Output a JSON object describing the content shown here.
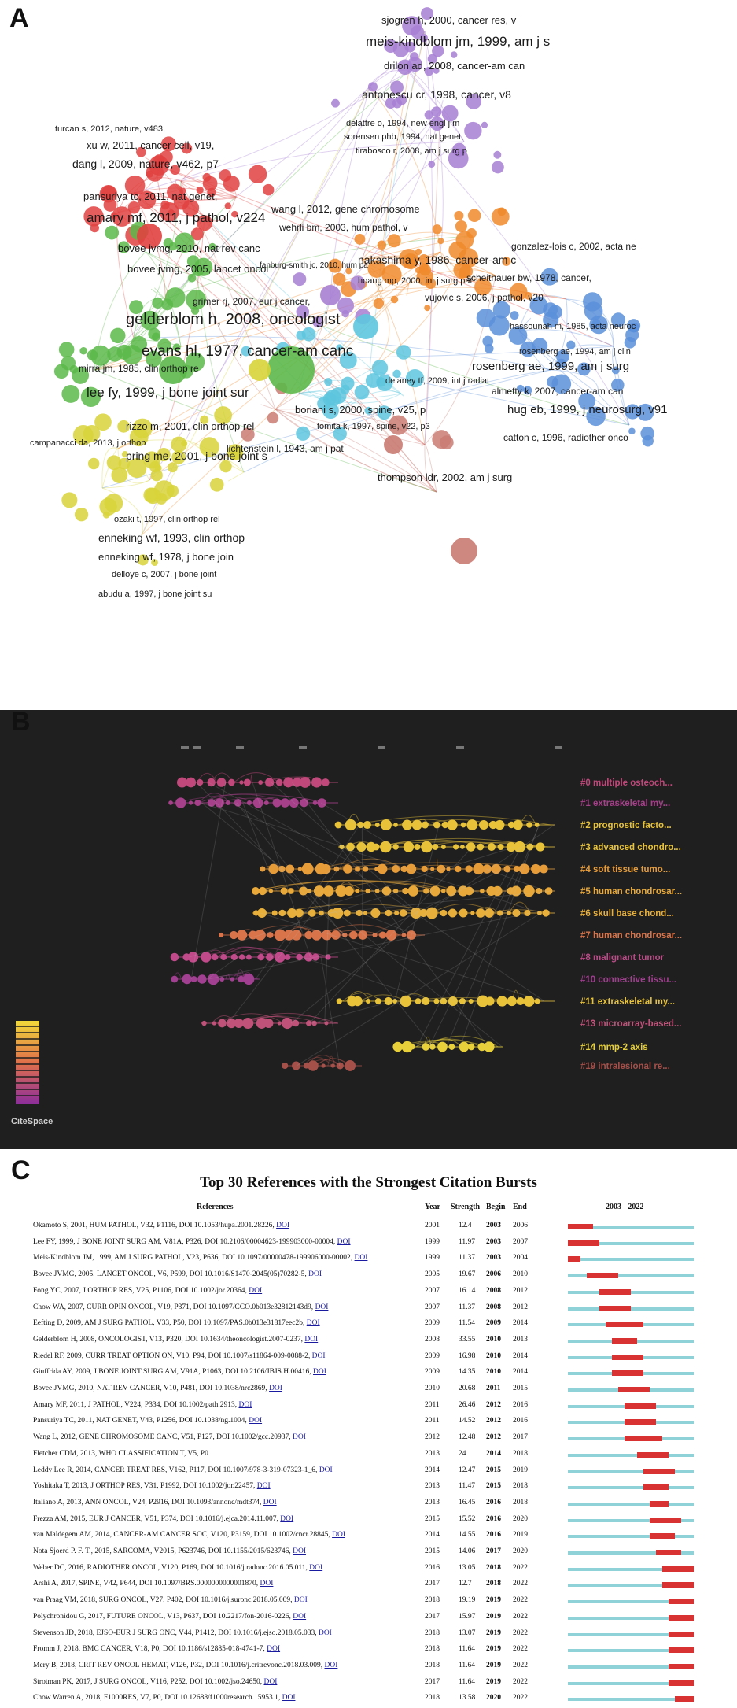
{
  "panel_a": {
    "letter": "A",
    "labels": [
      {
        "text": "sjogren h, 2000, cancer res, v",
        "cluster": "purple"
      },
      {
        "text": "meis-kindblom jm, 1999, am j s",
        "cluster": "purple"
      },
      {
        "text": "drilon ad, 2008, cancer-am can",
        "cluster": "purple"
      },
      {
        "text": "antonescu cr, 1998, cancer, v8",
        "cluster": "purple"
      },
      {
        "text": "delattre o, 1994, new engl j m",
        "cluster": "purple"
      },
      {
        "text": "sorensen phb, 1994, nat genet,",
        "cluster": "purple"
      },
      {
        "text": "tirabosco r, 2008, am j surg p",
        "cluster": "purple"
      },
      {
        "text": "turcan s, 2012, nature, v483,",
        "cluster": "red"
      },
      {
        "text": "xu w, 2011, cancer cell, v19,",
        "cluster": "red"
      },
      {
        "text": "dang l, 2009, nature, v462, p7",
        "cluster": "red"
      },
      {
        "text": "pansuriya tc, 2011, nat genet,",
        "cluster": "red"
      },
      {
        "text": "amary mf, 2011, j pathol, v224",
        "cluster": "red"
      },
      {
        "text": "wang l, 2012, gene chromosome",
        "cluster": "red"
      },
      {
        "text": "wehrli bm, 2003, hum pathol, v",
        "cluster": "red"
      },
      {
        "text": "fanburg-smith jc, 2010, hum pa",
        "cluster": "purple"
      },
      {
        "text": "bovee jvmg, 2010, nat rev canc",
        "cluster": "red"
      },
      {
        "text": "bovee jvmg, 2005, lancet oncol",
        "cluster": "green"
      },
      {
        "text": "hoang mp, 2000, int j surg pat",
        "cluster": "orange"
      },
      {
        "text": "gonzalez-lois c, 2002, acta ne",
        "cluster": "blue"
      },
      {
        "text": "nakashima y, 1986, cancer-am c",
        "cluster": "orange"
      },
      {
        "text": "scheithauer bw, 1978, cancer,",
        "cluster": "orange"
      },
      {
        "text": "vujovic s, 2006, j pathol, v20",
        "cluster": "orange"
      },
      {
        "text": "grimer rj, 2007, eur j cancer,",
        "cluster": "green"
      },
      {
        "text": "gelderblom h, 2008, oncologist",
        "cluster": "green"
      },
      {
        "text": "hassounah m, 1985, acta neuroc",
        "cluster": "blue"
      },
      {
        "text": "rosenberg ae, 1994, am j clin",
        "cluster": "blue"
      },
      {
        "text": "evans hl, 1977, cancer-am canc",
        "cluster": "green"
      },
      {
        "text": "rosenberg ae, 1999, am j surg",
        "cluster": "blue"
      },
      {
        "text": "mirra jm, 1985, clin orthop re",
        "cluster": "green"
      },
      {
        "text": "delaney tf, 2009, int j radiat",
        "cluster": "cyan"
      },
      {
        "text": "almefty k, 2007, cancer-am can",
        "cluster": "blue"
      },
      {
        "text": "lee fy, 1999, j bone joint sur",
        "cluster": "green"
      },
      {
        "text": "boriani s, 2000, spine, v25, p",
        "cluster": "cyan"
      },
      {
        "text": "hug eb, 1999, j neurosurg, v91",
        "cluster": "blue"
      },
      {
        "text": "tomita k, 1997, spine, v22, p3",
        "cluster": "cyan"
      },
      {
        "text": "rizzo m, 2001, clin orthop rel",
        "cluster": "yellow"
      },
      {
        "text": "catton c, 1996, radiother onco",
        "cluster": "blue"
      },
      {
        "text": "campanacci da, 2013, j orthop",
        "cluster": "yellow"
      },
      {
        "text": "lichtenstein l, 1943, am j pat",
        "cluster": "brown"
      },
      {
        "text": "pring me, 2001, j bone joint s",
        "cluster": "yellow"
      },
      {
        "text": "thompson ldr, 2002, am j surg",
        "cluster": "brown"
      },
      {
        "text": "ozaki t, 1997, clin orthop rel",
        "cluster": "yellow"
      },
      {
        "text": "enneking wf, 1993, clin orthop",
        "cluster": "yellow"
      },
      {
        "text": "enneking wf, 1978, j bone join",
        "cluster": "yellow"
      },
      {
        "text": "delloye c, 2007, j bone joint",
        "cluster": "yellow"
      },
      {
        "text": "abudu a, 1997, j bone joint su",
        "cluster": "yellow"
      }
    ],
    "cluster_colors": {
      "red": "#e0413f",
      "green": "#5cb84a",
      "blue": "#5b8fd9",
      "orange": "#f08a2c",
      "yellow": "#d8d43a",
      "purple": "#a77fd3",
      "cyan": "#5dc6de",
      "brown": "#c97b72"
    }
  },
  "panel_b": {
    "letter": "B",
    "logo": "CiteSpace",
    "clusters": [
      {
        "label": "#0 multiple osteoch...",
        "color": "#c0487a"
      },
      {
        "label": "#1 extraskeletal my...",
        "color": "#a6408a"
      },
      {
        "label": "#2 prognostic facto...",
        "color": "#e8c33a"
      },
      {
        "label": "#3 advanced chondro...",
        "color": "#e8c33a"
      },
      {
        "label": "#4 soft tissue tumo...",
        "color": "#e79c3a"
      },
      {
        "label": "#5 human chondrosar...",
        "color": "#e8a93a"
      },
      {
        "label": "#6 skull base chond...",
        "color": "#e8b03a"
      },
      {
        "label": "#7 human chondrosar...",
        "color": "#d9744a"
      },
      {
        "label": "#8 malignant tumor",
        "color": "#c04a8a"
      },
      {
        "label": "#10 connective tissu...",
        "color": "#a13f90"
      },
      {
        "label": "#11 extraskeletal my...",
        "color": "#e8c33a"
      },
      {
        "label": "#13 microarray-based...",
        "color": "#c0527a"
      },
      {
        "label": "#14 mmp-2 axis",
        "color": "#e8d03a"
      },
      {
        "label": "#19 intralesional re...",
        "color": "#a6504a"
      }
    ]
  },
  "panel_c": {
    "letter": "C",
    "title": "Top 30 References with the Strongest Citation Bursts",
    "headers": {
      "references": "References",
      "year": "Year",
      "strength": "Strength",
      "begin": "Begin",
      "end": "End",
      "span": "2003 - 2022"
    },
    "span_start": 2003,
    "span_end": 2022,
    "rows": [
      {
        "ref": "Okamoto S, 2001, HUM PATHOL, V32, P1116, DOI 10.1053/hupa.2001.28226,",
        "doi": "DOI",
        "year": "2001",
        "strength": "12.4",
        "begin": "2003",
        "end": "2006"
      },
      {
        "ref": "Lee FY, 1999, J BONE JOINT SURG AM, V81A, P326, DOI 10.2106/00004623-199903000-00004,",
        "doi": "DOI",
        "year": "1999",
        "strength": "11.97",
        "begin": "2003",
        "end": "2007"
      },
      {
        "ref": "Meis-Kindblom JM, 1999, AM J SURG PATHOL, V23, P636, DOI 10.1097/00000478-199906000-00002,",
        "doi": "DOI",
        "year": "1999",
        "strength": "11.37",
        "begin": "2003",
        "end": "2004"
      },
      {
        "ref": "Bovee JVMG, 2005, LANCET ONCOL, V6, P599, DOI 10.1016/S1470-2045(05)70282-5,",
        "doi": "DOI",
        "year": "2005",
        "strength": "19.67",
        "begin": "2006",
        "end": "2010"
      },
      {
        "ref": "Fong YC, 2007, J ORTHOP RES, V25, P1106, DOI 10.1002/jor.20364,",
        "doi": "DOI",
        "year": "2007",
        "strength": "16.14",
        "begin": "2008",
        "end": "2012"
      },
      {
        "ref": "Chow WA, 2007, CURR OPIN ONCOL, V19, P371, DOI 10.1097/CCO.0b013e32812143d9,",
        "doi": "DOI",
        "year": "2007",
        "strength": "11.37",
        "begin": "2008",
        "end": "2012"
      },
      {
        "ref": "Eefting D, 2009, AM J SURG PATHOL, V33, P50, DOI 10.1097/PAS.0b013e31817eec2b,",
        "doi": "DOI",
        "year": "2009",
        "strength": "11.54",
        "begin": "2009",
        "end": "2014"
      },
      {
        "ref": "Gelderblom H, 2008, ONCOLOGIST, V13, P320, DOI 10.1634/theoncologist.2007-0237,",
        "doi": "DOI",
        "year": "2008",
        "strength": "33.55",
        "begin": "2010",
        "end": "2013"
      },
      {
        "ref": "Riedel RF, 2009, CURR TREAT OPTION ON, V10, P94, DOI 10.1007/s11864-009-0088-2,",
        "doi": "DOI",
        "year": "2009",
        "strength": "16.98",
        "begin": "2010",
        "end": "2014"
      },
      {
        "ref": "Giuffrida AY, 2009, J BONE JOINT SURG AM, V91A, P1063, DOI 10.2106/JBJS.H.00416,",
        "doi": "DOI",
        "year": "2009",
        "strength": "14.35",
        "begin": "2010",
        "end": "2014"
      },
      {
        "ref": "Bovee JVMG, 2010, NAT REV CANCER, V10, P481, DOI 10.1038/nrc2869,",
        "doi": "DOI",
        "year": "2010",
        "strength": "20.68",
        "begin": "2011",
        "end": "2015"
      },
      {
        "ref": "Amary MF, 2011, J PATHOL, V224, P334, DOI 10.1002/path.2913,",
        "doi": "DOI",
        "year": "2011",
        "strength": "26.46",
        "begin": "2012",
        "end": "2016"
      },
      {
        "ref": "Pansuriya TC, 2011, NAT GENET, V43, P1256, DOI 10.1038/ng.1004,",
        "doi": "DOI",
        "year": "2011",
        "strength": "14.52",
        "begin": "2012",
        "end": "2016"
      },
      {
        "ref": "Wang L, 2012, GENE CHROMOSOME CANC, V51, P127, DOI 10.1002/gcc.20937,",
        "doi": "DOI",
        "year": "2012",
        "strength": "12.48",
        "begin": "2012",
        "end": "2017"
      },
      {
        "ref": "Fletcher CDM, 2013, WHO CLASSIFICATION T, V5, P0",
        "doi": "",
        "year": "2013",
        "strength": "24",
        "begin": "2014",
        "end": "2018"
      },
      {
        "ref": "Leddy Lee R, 2014, CANCER TREAT RES, V162, P117, DOI 10.1007/978-3-319-07323-1_6,",
        "doi": "DOI",
        "year": "2014",
        "strength": "12.47",
        "begin": "2015",
        "end": "2019"
      },
      {
        "ref": "Yoshitaka T, 2013, J ORTHOP RES, V31, P1992, DOI 10.1002/jor.22457,",
        "doi": "DOI",
        "year": "2013",
        "strength": "11.47",
        "begin": "2015",
        "end": "2018"
      },
      {
        "ref": "Italiano A, 2013, ANN ONCOL, V24, P2916, DOI 10.1093/annonc/mdt374,",
        "doi": "DOI",
        "year": "2013",
        "strength": "16.45",
        "begin": "2016",
        "end": "2018"
      },
      {
        "ref": "Frezza AM, 2015, EUR J CANCER, V51, P374, DOI 10.1016/j.ejca.2014.11.007,",
        "doi": "DOI",
        "year": "2015",
        "strength": "15.52",
        "begin": "2016",
        "end": "2020"
      },
      {
        "ref": "van Maldegem AM, 2014, CANCER-AM CANCER SOC, V120, P3159, DOI 10.1002/cncr.28845,",
        "doi": "DOI",
        "year": "2014",
        "strength": "14.55",
        "begin": "2016",
        "end": "2019"
      },
      {
        "ref": "Nota Sjoerd P. F. T., 2015, SARCOMA, V2015, P623746, DOI 10.1155/2015/623746,",
        "doi": "DOI",
        "year": "2015",
        "strength": "14.06",
        "begin": "2017",
        "end": "2020"
      },
      {
        "ref": "Weber DC, 2016, RADIOTHER ONCOL, V120, P169, DOI 10.1016/j.radonc.2016.05.011,",
        "doi": "DOI",
        "year": "2016",
        "strength": "13.05",
        "begin": "2018",
        "end": "2022"
      },
      {
        "ref": "Arshi A, 2017, SPINE, V42, P644, DOI 10.1097/BRS.0000000000001870,",
        "doi": "DOI",
        "year": "2017",
        "strength": "12.7",
        "begin": "2018",
        "end": "2022"
      },
      {
        "ref": "van Praag VM, 2018, SURG ONCOL, V27, P402, DOI 10.1016/j.suronc.2018.05.009,",
        "doi": "DOI",
        "year": "2018",
        "strength": "19.19",
        "begin": "2019",
        "end": "2022"
      },
      {
        "ref": "Polychronidou G, 2017, FUTURE ONCOL, V13, P637, DOI 10.2217/fon-2016-0226,",
        "doi": "DOI",
        "year": "2017",
        "strength": "15.97",
        "begin": "2019",
        "end": "2022"
      },
      {
        "ref": "Stevenson JD, 2018, EJSO-EUR J SURG ONC, V44, P1412, DOI 10.1016/j.ejso.2018.05.033,",
        "doi": "DOI",
        "year": "2018",
        "strength": "13.07",
        "begin": "2019",
        "end": "2022"
      },
      {
        "ref": "Fromm J, 2018, BMC CANCER, V18, P0, DOI 10.1186/s12885-018-4741-7,",
        "doi": "DOI",
        "year": "2018",
        "strength": "11.64",
        "begin": "2019",
        "end": "2022"
      },
      {
        "ref": "Mery B, 2018, CRIT REV ONCOL HEMAT, V126, P32, DOI 10.1016/j.critrevonc.2018.03.009,",
        "doi": "DOI",
        "year": "2018",
        "strength": "11.64",
        "begin": "2019",
        "end": "2022"
      },
      {
        "ref": "Strotman PK, 2017, J SURG ONCOL, V116, P252, DOI 10.1002/jso.24650,",
        "doi": "DOI",
        "year": "2017",
        "strength": "11.64",
        "begin": "2019",
        "end": "2022"
      },
      {
        "ref": "Chow Warren A, 2018, F1000RES, V7, P0, DOI 10.12688/f1000research.15953.1,",
        "doi": "DOI",
        "year": "2018",
        "strength": "13.58",
        "begin": "2020",
        "end": "2022"
      }
    ]
  }
}
